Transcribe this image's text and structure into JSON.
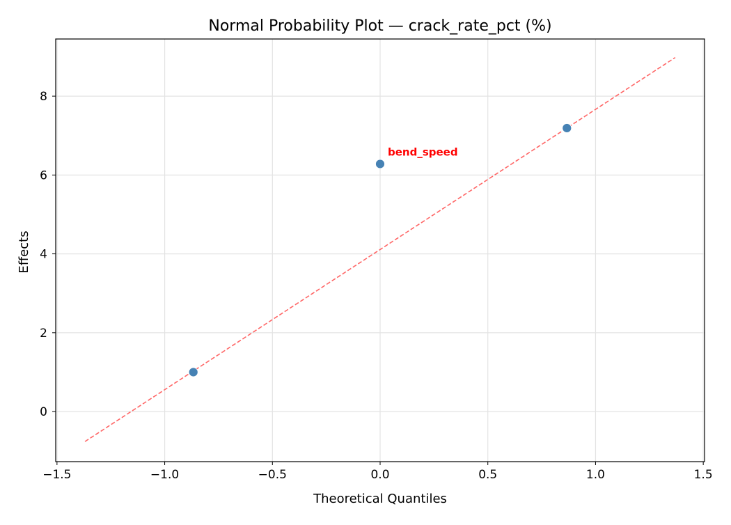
{
  "chart_data": {
    "type": "scatter",
    "title": "Normal Probability Plot — crack_rate_pct (%)",
    "xlabel": "Theoretical Quantiles",
    "ylabel": "Effects",
    "xlim": [
      -1.506,
      1.506
    ],
    "ylim": [
      -1.27,
      9.45
    ],
    "grid": true,
    "x_ticks": [
      -1.5,
      -1.0,
      -0.5,
      0.0,
      0.5,
      1.0,
      1.5
    ],
    "x_tick_labels": [
      "−1.5",
      "−1.0",
      "−0.5",
      "0.0",
      "0.5",
      "1.0",
      "1.5"
    ],
    "y_ticks": [
      0,
      2,
      4,
      6,
      8
    ],
    "y_tick_labels": [
      "0",
      "2",
      "4",
      "6",
      "8"
    ],
    "points": [
      {
        "x": -0.867,
        "y": 1.0,
        "label": ""
      },
      {
        "x": 0.0,
        "y": 6.28,
        "label": "bend_speed"
      },
      {
        "x": 0.867,
        "y": 7.19,
        "label": ""
      }
    ],
    "reference_line": {
      "x": [
        -1.37,
        1.37
      ],
      "y": [
        -0.76,
        8.98
      ],
      "style": "dashed",
      "color": "#ff6666"
    },
    "point_color": "#4682b4",
    "annotation_color": "#ff0000"
  }
}
